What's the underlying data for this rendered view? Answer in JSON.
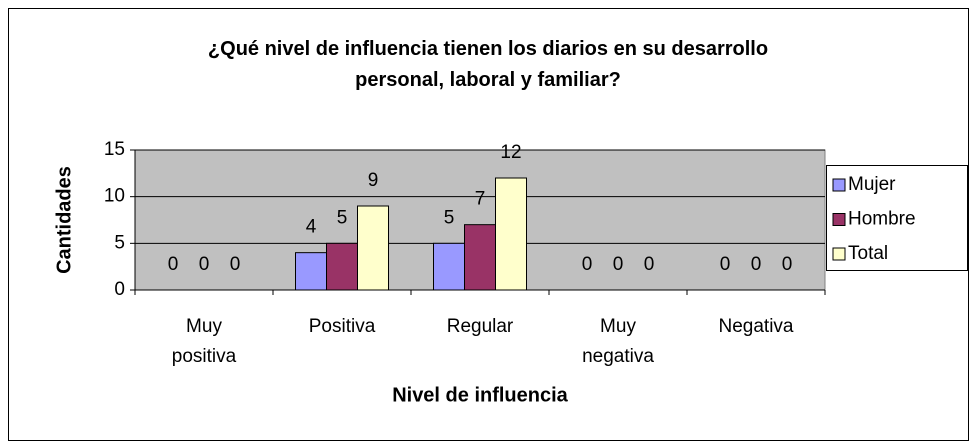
{
  "chart_data": {
    "type": "bar",
    "title": "¿Qué nivel de influencia tienen los diarios en su desarrollo personal, laboral y familiar?",
    "x_label": "Nivel de influencia",
    "y_label": "Cantidades",
    "categories": [
      "Muy positiva",
      "Positiva",
      "Regular",
      "Muy negativa",
      "Negativa"
    ],
    "series": [
      {
        "name": "Mujer",
        "color": "#9999ff",
        "values": [
          0,
          4,
          5,
          0,
          0
        ]
      },
      {
        "name": "Hombre",
        "color": "#993366",
        "values": [
          0,
          5,
          7,
          0,
          0
        ]
      },
      {
        "name": "Total",
        "color": "#ffffcc",
        "values": [
          0,
          9,
          12,
          0,
          0
        ]
      }
    ],
    "ylim": [
      0,
      15
    ],
    "yticks": [
      0,
      5,
      10,
      15
    ],
    "grid": true,
    "legend": "right"
  }
}
